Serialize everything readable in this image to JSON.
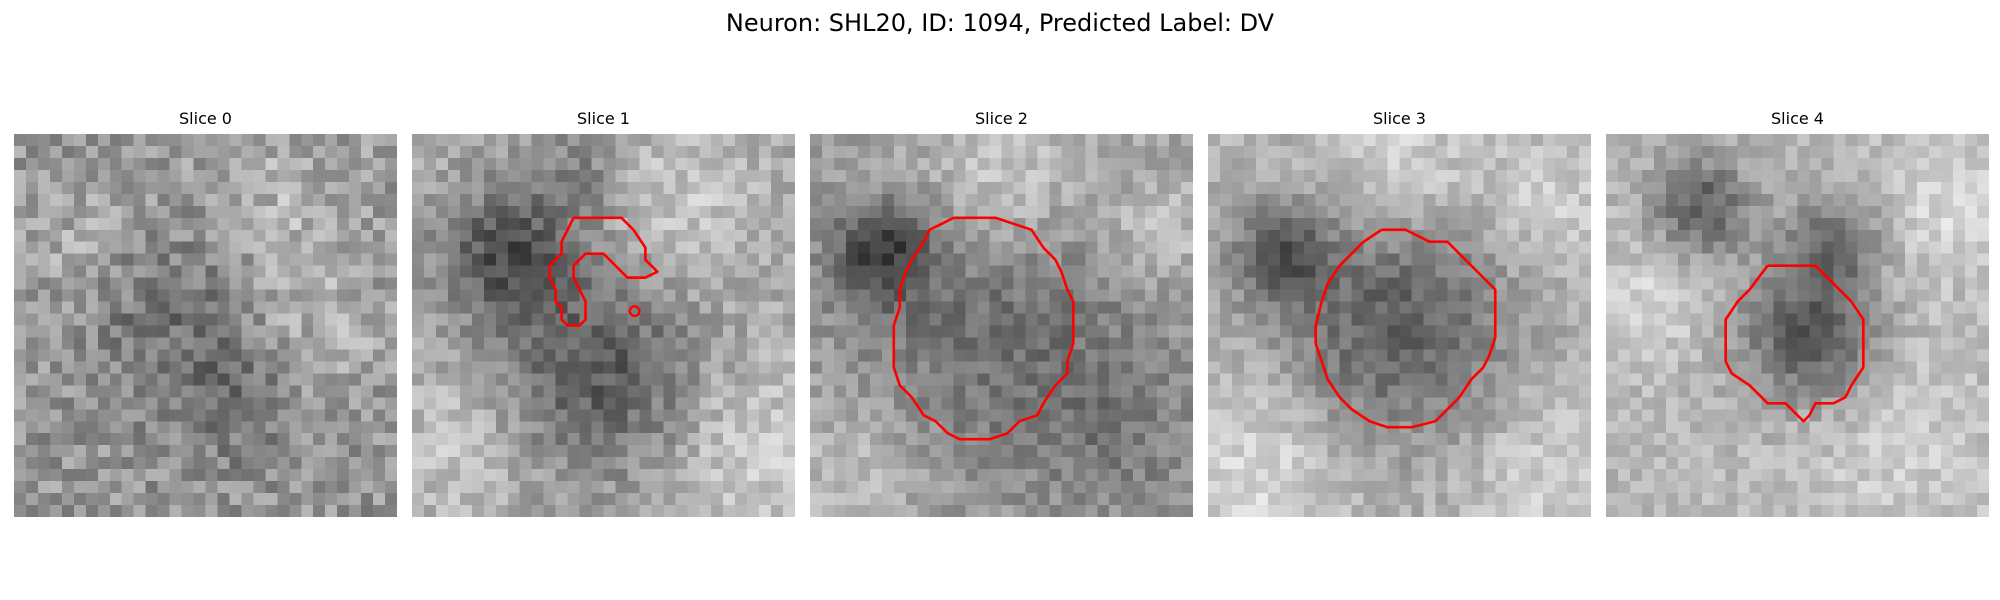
{
  "figure": {
    "title": "Neuron: SHL20, ID: 1094, Predicted Label: DV"
  },
  "panels": [
    {
      "label": "Slice 0",
      "has_contour": false
    },
    {
      "label": "Slice 1",
      "has_contour": true
    },
    {
      "label": "Slice 2",
      "has_contour": true
    },
    {
      "label": "Slice 3",
      "has_contour": true
    },
    {
      "label": "Slice 4",
      "has_contour": true
    }
  ],
  "colors": {
    "contour": "#ff0000",
    "colormap": "grayscale"
  }
}
